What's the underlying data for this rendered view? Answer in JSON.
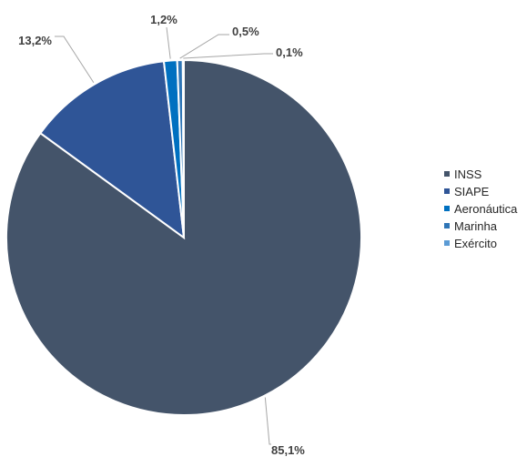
{
  "chart_data": {
    "type": "pie",
    "title": "",
    "series": [
      {
        "values": [
          85.1,
          13.2,
          1.2,
          0.5,
          0.1
        ]
      }
    ],
    "categories": [
      "INSS",
      "SIAPE",
      "Aeronáutica",
      "Marinha",
      "Exército"
    ],
    "data_labels": [
      "85,1%",
      "13,2%",
      "1,2%",
      "0,5%",
      "0,1%"
    ],
    "colors": [
      "#44546a",
      "#2f5597",
      "#0070c0",
      "#2e75b6",
      "#5b9bd5"
    ],
    "start_angle_deg": 0,
    "direction": "clockwise",
    "legend": {
      "position": "right",
      "entries": [
        "INSS",
        "SIAPE",
        "Aeronáutica",
        "Marinha",
        "Exército"
      ]
    }
  }
}
